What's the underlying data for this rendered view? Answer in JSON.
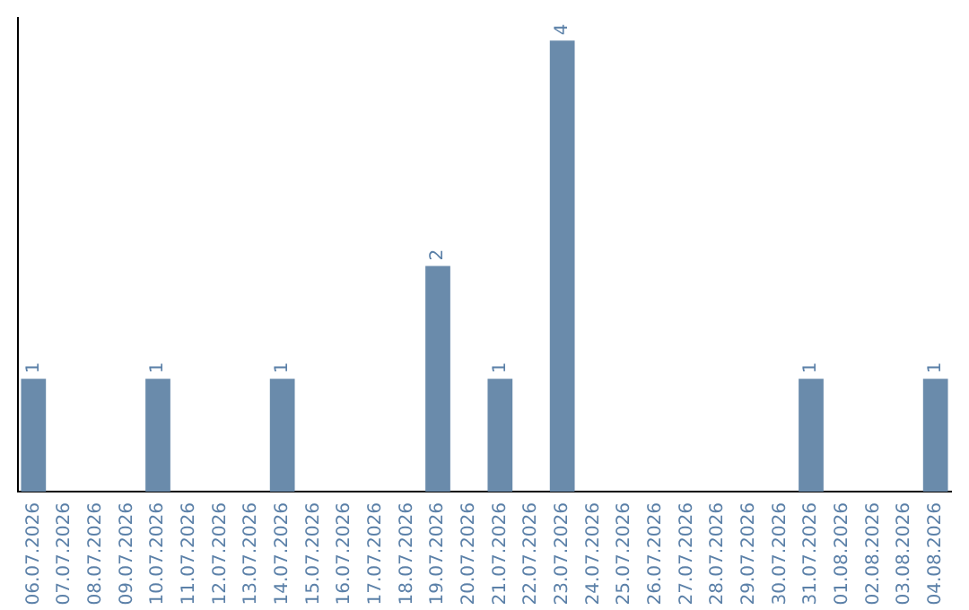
{
  "chart_data": {
    "type": "bar",
    "categories": [
      "06.07.2026",
      "07.07.2026",
      "08.07.2026",
      "09.07.2026",
      "10.07.2026",
      "11.07.2026",
      "12.07.2026",
      "13.07.2026",
      "14.07.2026",
      "15.07.2026",
      "16.07.2026",
      "17.07.2026",
      "18.07.2026",
      "19.07.2026",
      "20.07.2026",
      "21.07.2026",
      "22.07.2026",
      "23.07.2026",
      "24.07.2026",
      "25.07.2026",
      "26.07.2026",
      "27.07.2026",
      "28.07.2026",
      "29.07.2026",
      "30.07.2026",
      "31.07.2026",
      "01.08.2026",
      "02.08.2026",
      "03.08.2026",
      "04.08.2026"
    ],
    "values": [
      1,
      0,
      0,
      0,
      1,
      0,
      0,
      0,
      1,
      0,
      0,
      0,
      0,
      2,
      0,
      1,
      0,
      4,
      0,
      0,
      0,
      0,
      0,
      0,
      0,
      1,
      0,
      0,
      0,
      1
    ],
    "value_labels": [
      "1",
      null,
      null,
      null,
      "1",
      null,
      null,
      null,
      "1",
      null,
      null,
      null,
      null,
      "2",
      null,
      "1",
      null,
      "4",
      null,
      null,
      null,
      null,
      null,
      null,
      null,
      "1",
      null,
      null,
      null,
      "1"
    ],
    "color": "#6a8bab",
    "ylim": [
      0,
      4.2
    ],
    "tick_labels": "x",
    "grid": false,
    "legend": false
  }
}
